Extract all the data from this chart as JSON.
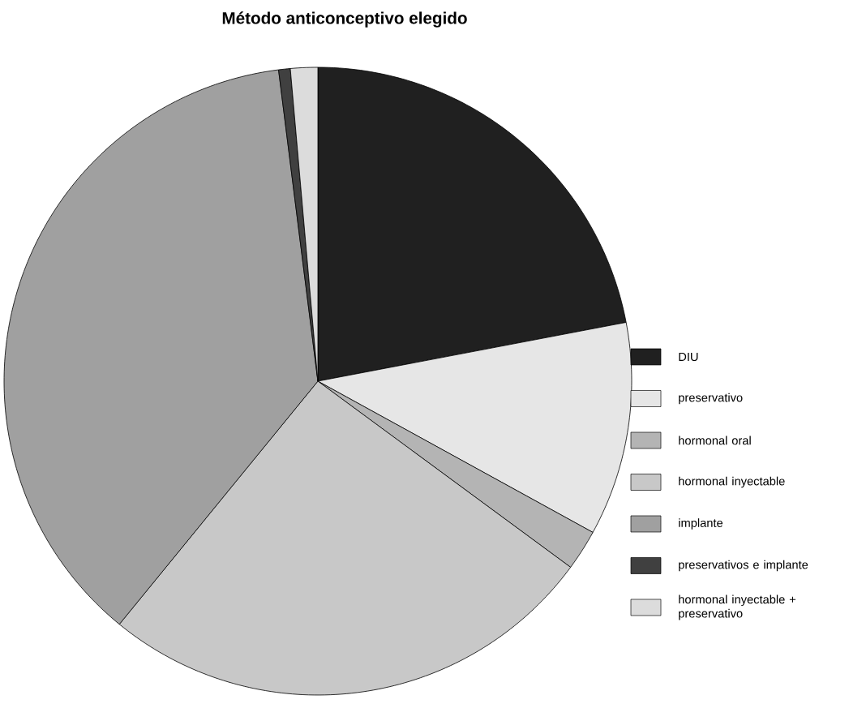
{
  "chart_data": {
    "type": "pie",
    "title": "Método anticonceptivo elegido",
    "categories": [
      "DIU",
      "preservativo",
      "hormonal oral",
      "hormonal inyectable",
      "implante",
      "preservativos e implante",
      "hormonal inyectable + preservativo"
    ],
    "values": [
      22.0,
      11.0,
      2.1,
      25.8,
      37.1,
      0.6,
      1.4
    ],
    "colors": [
      "#202020",
      "#e6e6e6",
      "#b4b4b4",
      "#c8c8c8",
      "#a0a0a0",
      "#404040",
      "#dcdcdc"
    ],
    "legend": "right"
  }
}
